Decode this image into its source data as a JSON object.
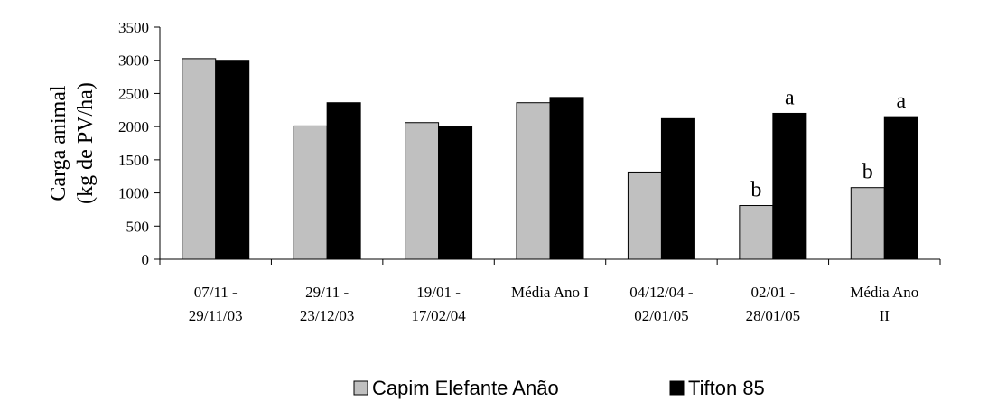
{
  "chart_data": {
    "type": "bar",
    "ylabel_lines": [
      "Carga animal",
      "(kg de PV/ha)"
    ],
    "ylim": [
      0,
      3500
    ],
    "ytick_step": 500,
    "grid": false,
    "legend_placement": "bottom",
    "categories": [
      [
        "07/11 -",
        "29/11/03"
      ],
      [
        "29/11 -",
        "23/12/03"
      ],
      [
        "19/01 -",
        "17/02/04"
      ],
      [
        "Média Ano I"
      ],
      [
        "04/12/04 -",
        "02/01/05"
      ],
      [
        "02/01 -",
        "28/01/05"
      ],
      [
        "Média Ano",
        "II"
      ]
    ],
    "series": [
      {
        "name": "Capim Elefante Anão",
        "color": "#c0c0c0",
        "values": [
          3025,
          2010,
          2060,
          2360,
          1315,
          810,
          1080
        ],
        "annotations": [
          "",
          "",
          "",
          "",
          "",
          "b",
          "b"
        ]
      },
      {
        "name": "Tifton 85",
        "color": "#000000",
        "values": [
          3000,
          2360,
          1995,
          2440,
          2120,
          2200,
          2150
        ],
        "annotations": [
          "",
          "",
          "",
          "",
          "",
          "a",
          "a"
        ]
      }
    ]
  }
}
